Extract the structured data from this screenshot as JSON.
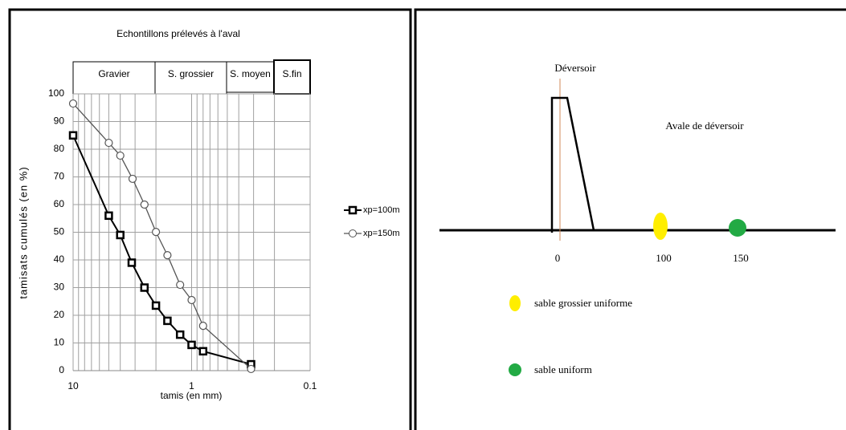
{
  "chart_data": {
    "type": "line",
    "title": "Echontillons prélevés à l'aval",
    "xlabel": "tamis (en mm)",
    "ylabel": "tamisats cumulés (en %)",
    "xscale": "log",
    "xlim": [
      10,
      0.1
    ],
    "xticks": [
      10,
      1,
      0.1
    ],
    "x_minor_grid": [
      9,
      8,
      7,
      6,
      5,
      4,
      3,
      2,
      0.9,
      0.8,
      0.7,
      0.6,
      0.5,
      0.4,
      0.3,
      0.2
    ],
    "ylim": [
      0,
      100
    ],
    "yticks": [
      0,
      10,
      20,
      30,
      40,
      50,
      60,
      70,
      80,
      90,
      100
    ],
    "grid": true,
    "bands": [
      "Gravier",
      "S. grossier",
      "S. moyen",
      "S.fin"
    ],
    "legend": "right",
    "series": [
      {
        "name": "xp=100m",
        "color": "#000000",
        "marker": "square",
        "x": [
          10,
          5,
          4,
          3.2,
          2.5,
          2,
          1.6,
          1.25,
          1,
          0.8,
          0.315
        ],
        "values": [
          85,
          56,
          49,
          39,
          30,
          23.5,
          18,
          13,
          9.3,
          7,
          2.3
        ]
      },
      {
        "name": "xp=150m",
        "color": "#555555",
        "marker": "circle",
        "x": [
          10,
          5,
          4,
          3.15,
          2.5,
          2,
          1.6,
          1.25,
          1,
          0.8,
          0.315
        ],
        "values": [
          96.5,
          82.3,
          77.7,
          69.3,
          60,
          50.1,
          41.7,
          31,
          25.5,
          16.2,
          0.6
        ]
      }
    ]
  },
  "diagram": {
    "weir": "Déversoir",
    "downstream": "Avale de déversoir",
    "positions": [
      "0",
      "100",
      "150"
    ],
    "legend": [
      "sable grossier uniforme",
      "sable uniform"
    ]
  }
}
